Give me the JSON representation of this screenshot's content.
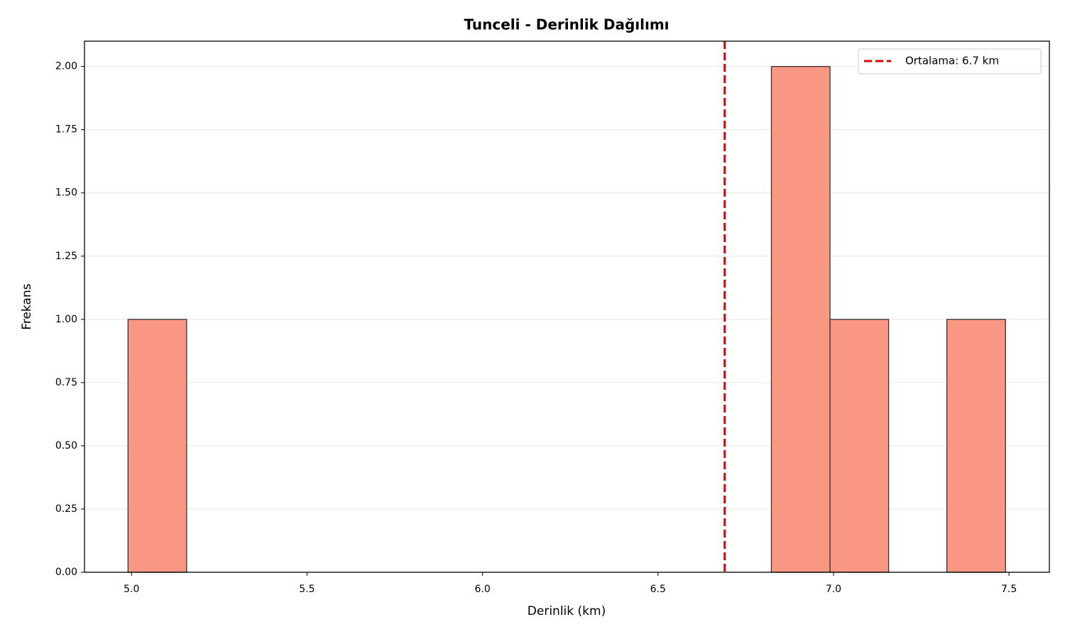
{
  "chart_data": {
    "type": "histogram",
    "title": "Tunceli - Derinlik Dağılımı",
    "x_label": "Derinlik (km)",
    "y_label": "Frekans",
    "bins": [
      4.99,
      5.157,
      5.323,
      5.49,
      5.657,
      5.823,
      5.99,
      6.157,
      6.323,
      6.49,
      6.657,
      6.823,
      6.99,
      7.157,
      7.323,
      7.49
    ],
    "counts": [
      1,
      0,
      0,
      0,
      0,
      0,
      0,
      0,
      0,
      0,
      0,
      2,
      1,
      0,
      1
    ],
    "color": "#fa9782",
    "edgecolor": "#333333",
    "mean_line": {
      "value": 6.69,
      "label": "Ortalama: 6.7 km",
      "color": "#e00000"
    },
    "legend_position": "upper right",
    "xlim": [
      4.866,
      7.615
    ],
    "xticks": [
      {
        "value": 5.0,
        "label": "5.0"
      },
      5.5,
      {
        "value": 6.0,
        "label": "6.0"
      },
      6.5,
      {
        "value": 7.0,
        "label": "7.0"
      },
      7.5
    ],
    "ylim": [
      0,
      2.1
    ],
    "yticks": [
      {
        "value": 0,
        "label": "0.00"
      },
      {
        "value": 0.25,
        "label": "0.25"
      },
      {
        "value": 0.5,
        "label": "0.50"
      },
      {
        "value": 0.75,
        "label": "0.75"
      },
      {
        "value": 1.0,
        "label": "1.00"
      },
      {
        "value": 1.25,
        "label": "1.25"
      },
      {
        "value": 1.5,
        "label": "1.50"
      },
      {
        "value": 1.75,
        "label": "1.75"
      },
      {
        "value": 2.0,
        "label": "2.00"
      }
    ],
    "grid": "y"
  }
}
